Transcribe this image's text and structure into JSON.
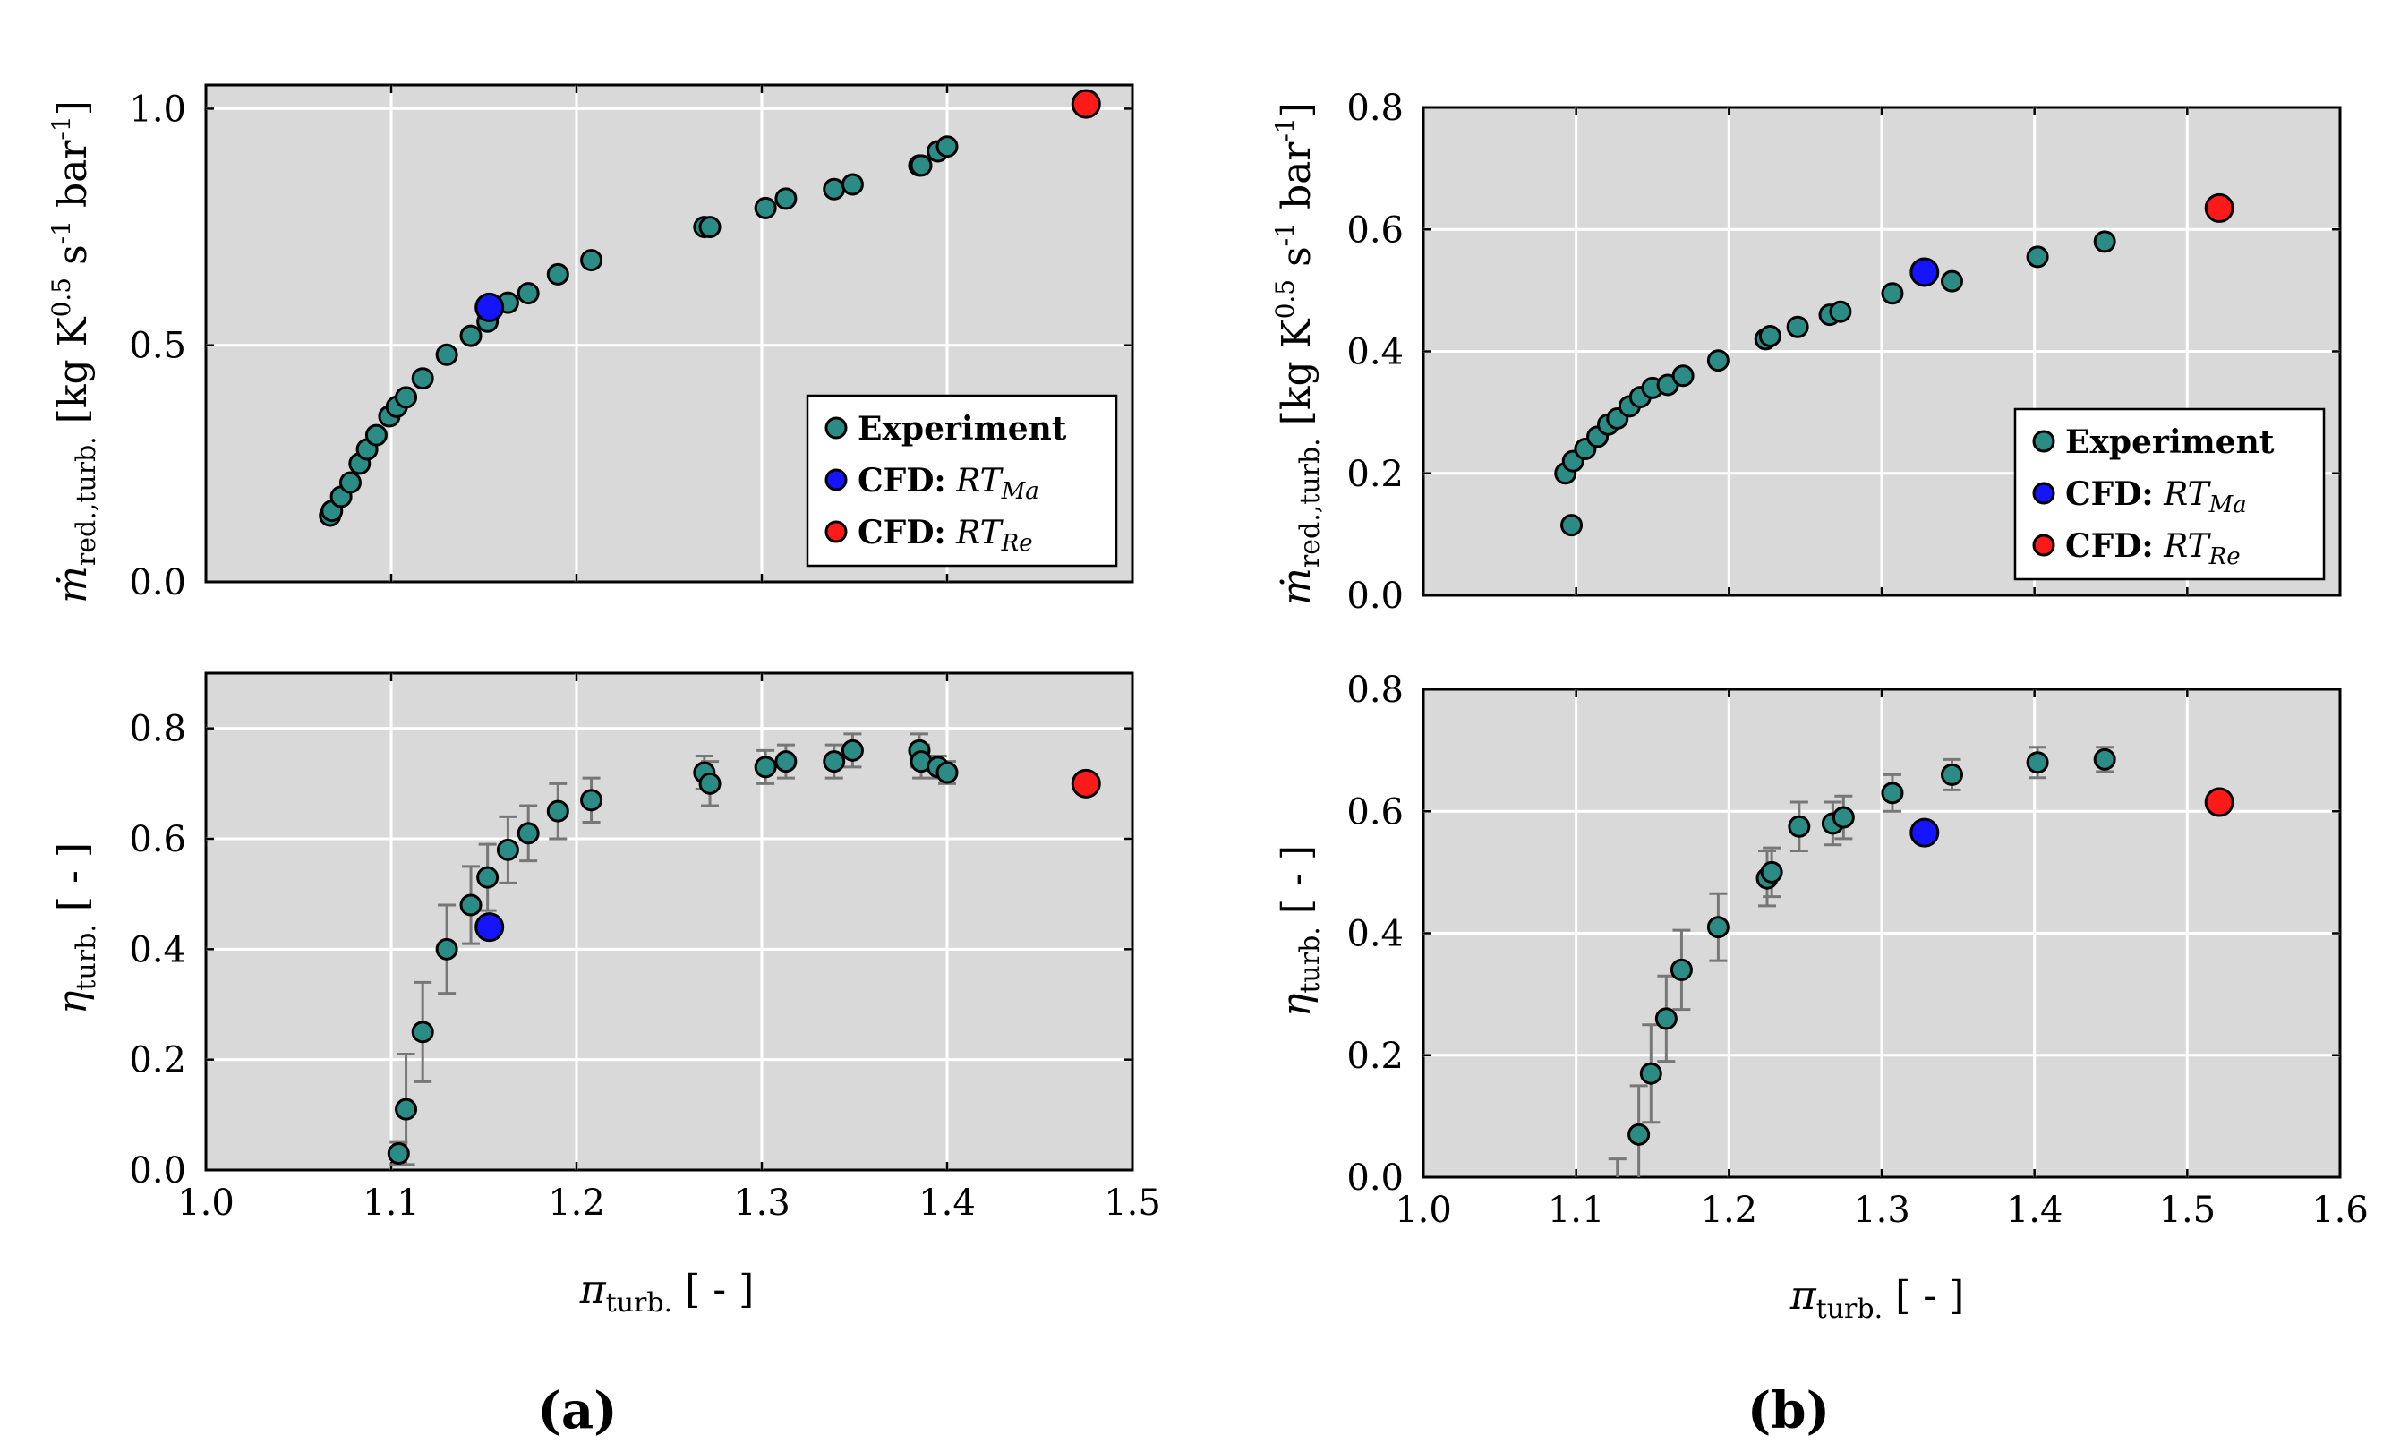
{
  "colors": {
    "experiment": "#2a8c85",
    "cfd_ma": "#1414ff",
    "cfd_re": "#ff1a1a",
    "panel_bg": "#d9d9d9",
    "error_bar": "#777777"
  },
  "chart_data": [
    {
      "id": "a_top",
      "type": "scatter",
      "subfigure": "a",
      "ylabel": "ṁ_red.,turb. [kg K^0.5 s^-1 bar^-1]",
      "xlim": [
        1.0,
        1.5
      ],
      "ylim": [
        0.0,
        1.05
      ],
      "xticks": [
        1.0,
        1.1,
        1.2,
        1.3,
        1.4,
        1.5
      ],
      "yticks": [
        0.0,
        0.5,
        1.0
      ],
      "xtick_labels": [
        "1.0",
        "1.1",
        "1.2",
        "1.3",
        "1.4",
        "1.5"
      ],
      "ytick_labels": [
        "0.0",
        "0.5",
        "1.0"
      ],
      "show_xticklabels": false,
      "legend": {
        "position": "lower-right",
        "entries": [
          {
            "series": "experiment",
            "bold": "Experiment",
            "math": "",
            "sub": ""
          },
          {
            "series": "cfd_ma",
            "bold": "CFD:",
            "math": "RT",
            "sub": "Ma"
          },
          {
            "series": "cfd_re",
            "bold": "CFD:",
            "math": "RT",
            "sub": "Re"
          }
        ]
      },
      "series": [
        {
          "name": "Experiment",
          "key": "experiment",
          "x": [
            1.067,
            1.068,
            1.073,
            1.078,
            1.083,
            1.087,
            1.092,
            1.099,
            1.103,
            1.108,
            1.117,
            1.13,
            1.143,
            1.152,
            1.163,
            1.174,
            1.19,
            1.208,
            1.269,
            1.272,
            1.302,
            1.313,
            1.339,
            1.349,
            1.385,
            1.386,
            1.395,
            1.4
          ],
          "y": [
            0.14,
            0.15,
            0.18,
            0.21,
            0.25,
            0.28,
            0.31,
            0.35,
            0.37,
            0.39,
            0.43,
            0.48,
            0.52,
            0.55,
            0.59,
            0.61,
            0.65,
            0.68,
            0.75,
            0.75,
            0.79,
            0.81,
            0.83,
            0.84,
            0.88,
            0.88,
            0.91,
            0.92
          ]
        },
        {
          "name": "CFD: RT_Ma",
          "key": "cfd_ma",
          "x": [
            1.153
          ],
          "y": [
            0.58
          ]
        },
        {
          "name": "CFD: RT_Re",
          "key": "cfd_re",
          "x": [
            1.475
          ],
          "y": [
            1.01
          ]
        }
      ]
    },
    {
      "id": "a_bottom",
      "type": "scatter",
      "subfigure": "a",
      "ylabel": "η_turb. [ - ]",
      "xlabel": "π_turb. [ - ]",
      "xlim": [
        1.0,
        1.5
      ],
      "ylim": [
        0.0,
        0.9
      ],
      "xticks": [
        1.0,
        1.1,
        1.2,
        1.3,
        1.4,
        1.5
      ],
      "yticks": [
        0.0,
        0.2,
        0.4,
        0.6,
        0.8
      ],
      "xtick_labels": [
        "1.0",
        "1.1",
        "1.2",
        "1.3",
        "1.4",
        "1.5"
      ],
      "ytick_labels": [
        "0.0",
        "0.2",
        "0.4",
        "0.6",
        "0.8"
      ],
      "show_xticklabels": true,
      "series": [
        {
          "name": "Experiment",
          "key": "experiment",
          "x": [
            1.104,
            1.108,
            1.117,
            1.13,
            1.143,
            1.152,
            1.163,
            1.174,
            1.19,
            1.208,
            1.269,
            1.272,
            1.302,
            1.313,
            1.339,
            1.349,
            1.385,
            1.386,
            1.395,
            1.4
          ],
          "y": [
            0.03,
            0.11,
            0.25,
            0.4,
            0.48,
            0.53,
            0.58,
            0.61,
            0.65,
            0.67,
            0.72,
            0.7,
            0.73,
            0.74,
            0.74,
            0.76,
            0.76,
            0.74,
            0.73,
            0.72
          ],
          "yerr": [
            0.02,
            0.1,
            0.09,
            0.08,
            0.07,
            0.06,
            0.06,
            0.05,
            0.05,
            0.04,
            0.03,
            0.04,
            0.03,
            0.03,
            0.03,
            0.03,
            0.03,
            0.03,
            0.02,
            0.02
          ]
        },
        {
          "name": "CFD: RT_Ma",
          "key": "cfd_ma",
          "x": [
            1.153
          ],
          "y": [
            0.44
          ]
        },
        {
          "name": "CFD: RT_Re",
          "key": "cfd_re",
          "x": [
            1.475
          ],
          "y": [
            0.7
          ]
        }
      ]
    },
    {
      "id": "b_top",
      "type": "scatter",
      "subfigure": "b",
      "ylabel": "ṁ_red.,turb. [kg K^0.5 s^-1 bar^-1]",
      "xlim": [
        1.0,
        1.6
      ],
      "ylim": [
        0.0,
        0.8
      ],
      "xticks": [
        1.0,
        1.1,
        1.2,
        1.3,
        1.4,
        1.5,
        1.6
      ],
      "yticks": [
        0.0,
        0.2,
        0.4,
        0.6,
        0.8
      ],
      "xtick_labels": [
        "1.0",
        "1.1",
        "1.2",
        "1.3",
        "1.4",
        "1.5",
        "1.6"
      ],
      "ytick_labels": [
        "0.0",
        "0.2",
        "0.4",
        "0.6",
        "0.8"
      ],
      "show_xticklabels": false,
      "legend": {
        "position": "lower-right",
        "entries": [
          {
            "series": "experiment",
            "bold": "Experiment",
            "math": "",
            "sub": ""
          },
          {
            "series": "cfd_ma",
            "bold": "CFD:",
            "math": "RT",
            "sub": "Ma"
          },
          {
            "series": "cfd_re",
            "bold": "CFD:",
            "math": "RT",
            "sub": "Re"
          }
        ]
      },
      "series": [
        {
          "name": "Experiment",
          "key": "experiment",
          "x": [
            1.093,
            1.097,
            1.098,
            1.106,
            1.114,
            1.121,
            1.127,
            1.135,
            1.142,
            1.15,
            1.16,
            1.17,
            1.193,
            1.224,
            1.227,
            1.245,
            1.266,
            1.273,
            1.307,
            1.346,
            1.402,
            1.446
          ],
          "y": [
            0.2,
            0.115,
            0.22,
            0.24,
            0.26,
            0.28,
            0.29,
            0.31,
            0.325,
            0.34,
            0.345,
            0.36,
            0.385,
            0.42,
            0.425,
            0.44,
            0.46,
            0.465,
            0.495,
            0.515,
            0.555,
            0.58
          ]
        },
        {
          "name": "CFD: RT_Ma",
          "key": "cfd_ma",
          "x": [
            1.328
          ],
          "y": [
            0.53
          ]
        },
        {
          "name": "CFD: RT_Re",
          "key": "cfd_re",
          "x": [
            1.521
          ],
          "y": [
            0.635
          ]
        }
      ]
    },
    {
      "id": "b_bottom",
      "type": "scatter",
      "subfigure": "b",
      "ylabel": "η_turb. [ - ]",
      "xlabel": "π_turb. [ - ]",
      "xlim": [
        1.0,
        1.6
      ],
      "ylim": [
        0.0,
        0.8
      ],
      "xticks": [
        1.0,
        1.1,
        1.2,
        1.3,
        1.4,
        1.5,
        1.6
      ],
      "yticks": [
        0.0,
        0.2,
        0.4,
        0.6,
        0.8
      ],
      "xtick_labels": [
        "1.0",
        "1.1",
        "1.2",
        "1.3",
        "1.4",
        "1.5",
        "1.6"
      ],
      "ytick_labels": [
        "0.0",
        "0.2",
        "0.4",
        "0.6",
        "0.8"
      ],
      "show_xticklabels": true,
      "series": [
        {
          "name": "Experiment",
          "key": "experiment",
          "x": [
            1.127,
            1.141,
            1.149,
            1.159,
            1.169,
            1.193,
            1.225,
            1.228,
            1.246,
            1.268,
            1.275,
            1.307,
            1.346,
            1.402,
            1.446
          ],
          "y": [
            -0.02,
            0.07,
            0.17,
            0.26,
            0.34,
            0.41,
            0.49,
            0.5,
            0.575,
            0.58,
            0.59,
            0.63,
            0.66,
            0.68,
            0.685
          ],
          "yerr": [
            0.05,
            0.08,
            0.08,
            0.07,
            0.065,
            0.055,
            0.045,
            0.04,
            0.04,
            0.035,
            0.035,
            0.03,
            0.025,
            0.025,
            0.02
          ]
        },
        {
          "name": "CFD: RT_Ma",
          "key": "cfd_ma",
          "x": [
            1.328
          ],
          "y": [
            0.565
          ]
        },
        {
          "name": "CFD: RT_Re",
          "key": "cfd_re",
          "x": [
            1.521
          ],
          "y": [
            0.615
          ]
        }
      ]
    }
  ],
  "captions": {
    "a": "(a)",
    "b": "(b)"
  }
}
